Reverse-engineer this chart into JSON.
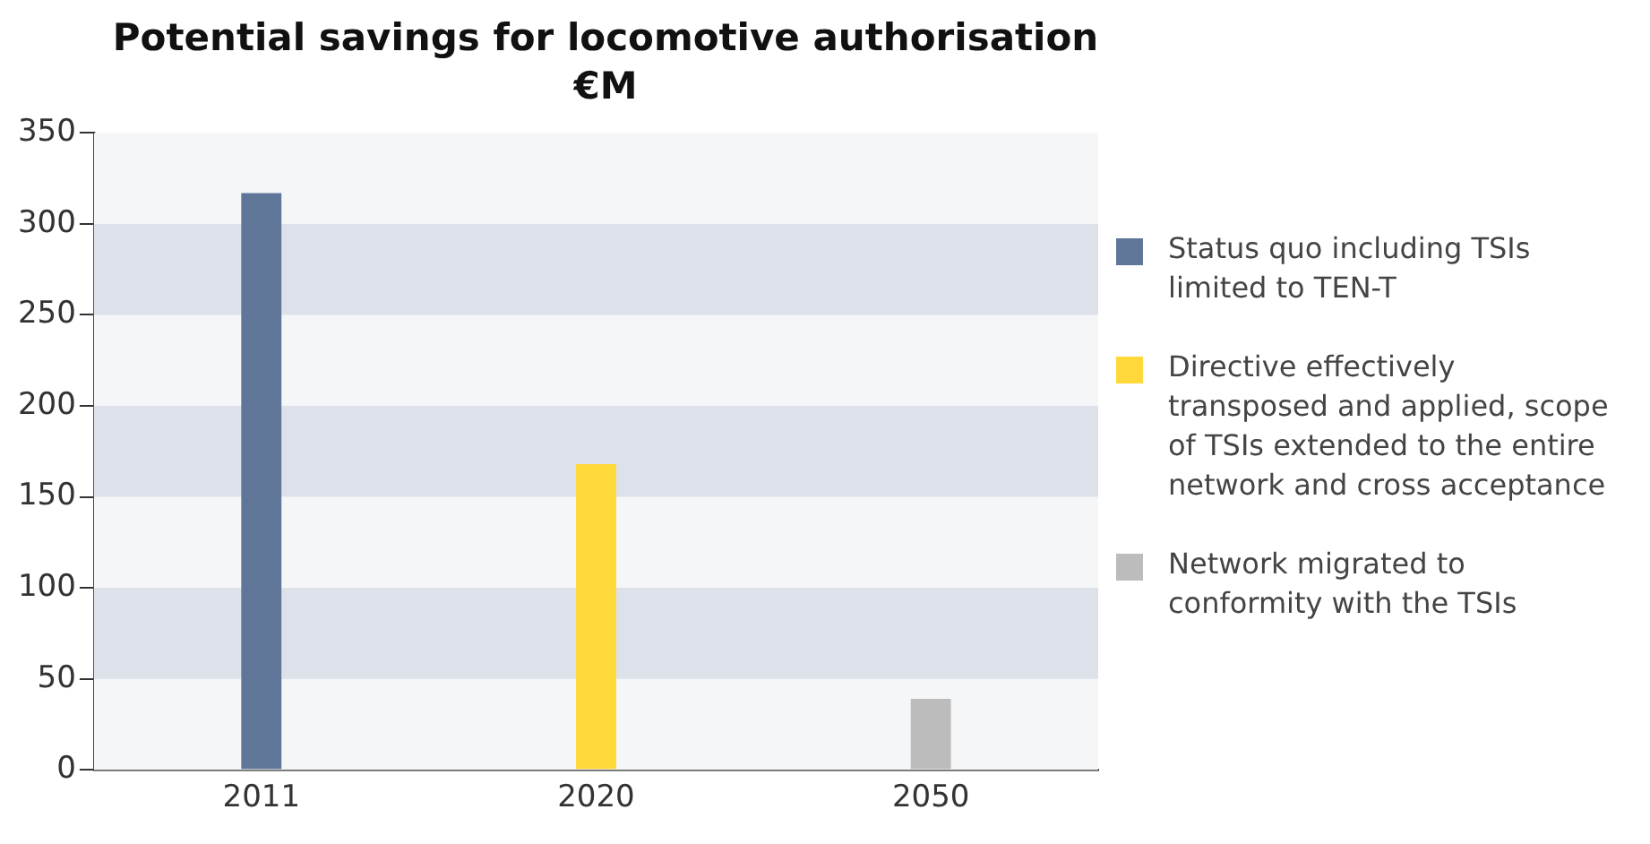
{
  "chart_data": {
    "type": "bar",
    "title": "Potential savings for locomotive authorisation €M",
    "categories": [
      "2011",
      "2020",
      "2050"
    ],
    "series": [
      {
        "name": "Status quo including TSIs limited to TEN-T",
        "color": "#5f7699",
        "values": [
          317,
          null,
          null
        ]
      },
      {
        "name": "Directive effectively transposed and applied, scope of TSIs extended to the entire network and cross acceptance",
        "color": "#ffd83a",
        "values": [
          null,
          168,
          null
        ]
      },
      {
        "name": "Network migrated to conformity with the TSIs",
        "color": "#bcbcbc",
        "values": [
          null,
          null,
          39
        ]
      }
    ],
    "ylim": [
      0,
      350
    ],
    "yticks": [
      0,
      50,
      100,
      150,
      200,
      250,
      300,
      350
    ],
    "legend": "right",
    "bands": [
      {
        "axis": "y",
        "from": 50,
        "to": 100,
        "color": "#dde2ea"
      },
      {
        "axis": "y",
        "from": 150,
        "to": 200,
        "color": "#dde2ea"
      },
      {
        "axis": "y",
        "from": 250,
        "to": 300,
        "color": "#dde2ea"
      }
    ]
  }
}
